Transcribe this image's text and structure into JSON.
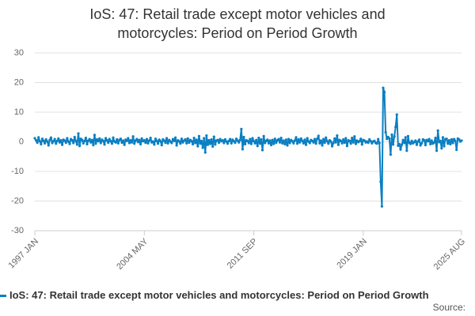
{
  "chart_data": {
    "type": "line",
    "title": "IoS: 47: Retail trade except motor vehicles and motorcycles: Period on Period Growth",
    "source": "Source:",
    "categories": [
      "1997 JAN",
      null,
      null,
      null,
      null,
      null,
      null,
      null,
      null,
      null,
      null,
      null,
      null,
      null,
      null,
      null,
      null,
      null,
      null,
      null,
      null,
      null,
      null,
      null,
      null,
      null,
      null,
      null,
      null,
      null,
      null,
      null,
      null,
      null,
      null,
      null,
      null,
      null,
      null,
      null,
      null,
      null,
      null,
      null,
      null,
      null,
      null,
      null,
      null,
      null,
      null,
      null,
      null,
      null,
      null,
      null,
      null,
      null,
      null,
      null,
      null,
      null,
      null,
      null,
      null,
      null,
      null,
      null,
      null,
      null,
      null,
      null,
      null,
      null,
      null,
      null,
      null,
      null,
      null,
      null,
      null,
      null,
      null,
      null,
      null,
      null,
      null,
      null,
      "2004 MAY",
      null,
      null,
      null,
      null,
      null,
      null,
      null,
      null,
      null,
      null,
      null,
      null,
      null,
      null,
      null,
      null,
      null,
      null,
      null,
      null,
      null,
      null,
      null,
      null,
      null,
      null,
      null,
      null,
      null,
      null,
      null,
      null,
      null,
      null,
      null,
      null,
      null,
      null,
      null,
      null,
      null,
      null,
      null,
      null,
      null,
      null,
      null,
      null,
      null,
      null,
      null,
      null,
      null,
      null,
      null,
      null,
      null,
      null,
      null,
      null,
      null,
      null,
      null,
      null,
      null,
      null,
      null,
      null,
      null,
      null,
      null,
      null,
      null,
      null,
      null,
      null,
      null,
      null,
      null,
      null,
      null,
      null,
      null,
      null,
      null,
      null,
      null,
      "2011 SEP",
      null,
      null,
      null,
      null,
      null,
      null,
      null,
      null,
      null,
      null,
      null,
      null,
      null,
      null,
      null,
      null,
      null,
      null,
      null,
      null,
      null,
      null,
      null,
      null,
      null,
      null,
      null,
      null,
      null,
      null,
      null,
      null,
      null,
      null,
      null,
      null,
      null,
      null,
      null,
      null,
      null,
      null,
      null,
      null,
      null,
      null,
      null,
      null,
      null,
      null,
      null,
      null,
      null,
      null,
      null,
      null,
      null,
      null,
      null,
      null,
      null,
      null,
      null,
      null,
      null,
      null,
      null,
      null,
      null,
      null,
      null,
      null,
      null,
      null,
      null,
      null,
      null,
      null,
      null,
      null,
      null,
      null,
      null,
      null,
      null,
      null,
      null,
      "2019 JAN",
      null,
      null,
      null,
      null,
      null,
      null,
      null,
      null,
      null,
      null,
      null,
      null,
      null,
      null,
      null,
      null,
      null,
      null,
      null,
      null,
      null,
      null,
      null,
      null,
      null,
      null,
      null,
      null,
      null,
      null,
      null,
      null,
      null,
      null,
      null,
      null,
      null,
      null,
      null,
      null,
      null,
      null,
      null,
      null,
      null,
      null,
      null,
      null,
      null,
      null,
      null,
      null,
      null,
      null,
      null,
      null,
      null,
      null,
      null,
      null,
      null,
      null,
      null,
      null,
      null,
      null,
      null,
      null,
      null,
      null,
      null,
      null,
      null,
      null,
      null,
      null,
      null,
      null,
      "2025 AUG"
    ],
    "series": [
      {
        "name": "IoS: 47: Retail trade except motor vehicles and motorcycles: Period on Period Growth",
        "color": "#0a7fc2",
        "values": [
          1.2,
          0.5,
          -0.3,
          1.5,
          0.2,
          -0.8,
          1.0,
          0.3,
          -0.5,
          0.8,
          0.1,
          -1.2,
          0.6,
          1.4,
          -0.4,
          0.2,
          0.9,
          -0.6,
          0.3,
          1.1,
          -0.2,
          0.5,
          -1.0,
          0.7,
          0.4,
          -0.3,
          1.2,
          0.1,
          -0.7,
          0.9,
          0.5,
          -0.4,
          1.6,
          0.2,
          -0.9,
          2.8,
          -1.4,
          1.0,
          0.6,
          -0.5,
          0.3,
          1.3,
          -0.8,
          0.4,
          0.9,
          -0.2,
          0.6,
          -1.1,
          2.3,
          -0.6,
          0.8,
          0.2,
          1.1,
          -0.4,
          0.7,
          0.3,
          -0.9,
          1.2,
          0.5,
          -0.3,
          0.9,
          0.2,
          -0.6,
          1.4,
          0.1,
          -0.2,
          0.8,
          -0.5,
          0.6,
          1.0,
          -0.3,
          0.4,
          -1.0,
          0.7,
          0.3,
          1.2,
          -0.4,
          0.5,
          -0.2,
          1.8,
          -0.6,
          0.4,
          0.9,
          -0.1,
          0.6,
          -0.8,
          1.1,
          0.2,
          0.5,
          -0.3,
          0.9,
          -0.5,
          0.4,
          1.3,
          -0.2,
          0.1,
          -0.9,
          1.0,
          0.3,
          -0.6,
          0.7,
          0.2,
          -1.1,
          0.8,
          0.4,
          -0.3,
          1.2,
          -0.5,
          0.6,
          0.1,
          -0.4,
          0.9,
          0.3,
          1.4,
          -1.2,
          0.5,
          0.2,
          -0.6,
          1.0,
          -0.2,
          0.4,
          0.8,
          -0.5,
          1.1,
          -0.3,
          0.6,
          0.2,
          -0.8,
          1.3,
          -0.4,
          0.7,
          -1.5,
          1.9,
          -0.6,
          0.3,
          -2.0,
          1.2,
          -3.6,
          2.1,
          -1.0,
          0.5,
          -0.7,
          0.8,
          -1.6,
          1.7,
          -0.9,
          0.4,
          0.6,
          -0.3,
          0.9,
          0.2,
          0.5,
          -0.4,
          0.8,
          0.1,
          -0.6,
          0.3,
          0.9,
          -0.5,
          0.7,
          0.2,
          -0.3,
          1.0,
          0.4,
          -0.2,
          0.6,
          4.3,
          -2.5,
          1.6,
          -0.8,
          0.5,
          0.3,
          -0.4,
          0.9,
          -0.7,
          1.2,
          0.2,
          -0.5,
          0.6,
          -1.4,
          1.3,
          -0.6,
          0.8,
          -2.8,
          1.9,
          -0.4,
          0.3,
          0.7,
          -0.5,
          0.4,
          -1.1,
          0.6,
          -0.7,
          1.0,
          -0.3,
          0.5,
          0.9,
          -0.2,
          1.3,
          -0.5,
          0.4,
          -0.8,
          0.7,
          -1.2,
          0.9,
          -0.4,
          0.6,
          0.2,
          -0.5,
          0.4,
          1.5,
          -0.6,
          0.8,
          -0.2,
          1.1,
          0.3,
          -0.5,
          0.7,
          -1.0,
          1.2,
          0.1,
          -0.4,
          0.6,
          0.3,
          -0.2,
          0.9,
          -0.6,
          1.0,
          2.0,
          -0.5,
          0.4,
          -1.2,
          0.9,
          -0.3,
          1.4,
          0.2,
          -0.6,
          0.5,
          0.1,
          -1.5,
          -0.4,
          1.1,
          -0.2,
          2.1,
          -1.0,
          0.6,
          0.3,
          -0.5,
          0.8,
          -0.3,
          1.2,
          -1.4,
          0.5,
          0.3,
          -0.6,
          1.3,
          -0.2,
          1.8,
          -0.7,
          0.4,
          -0.1,
          0.2,
          1.0,
          -0.9,
          0.6,
          0.4,
          -0.2,
          0.1,
          -0.3,
          0.8,
          0.2,
          -0.5,
          0.1,
          0.3,
          -0.4,
          -0.6,
          0.9,
          -0.4,
          -13.5,
          -21.8,
          18.2,
          16.8,
          3.2,
          1.0,
          1.6,
          1.1,
          -4.3,
          2.4,
          -0.9,
          1.8,
          5.0,
          9.2,
          -1.3,
          -0.8,
          -2.6,
          -1.0,
          0.6,
          -0.4,
          1.5,
          -3.0,
          1.9,
          -0.3,
          -0.7,
          0.3,
          -0.5,
          -0.1,
          0.4,
          -1.0,
          0.1,
          0.7,
          -1.2,
          -0.5,
          0.8,
          0.5,
          -1.1,
          0.6,
          0.2,
          0.9,
          -0.8,
          0.4,
          -0.6,
          -0.2,
          1.3,
          -3.0,
          3.8,
          -0.1,
          0.3,
          -2.2,
          1.5,
          -1.5,
          0.9,
          1.0,
          -0.6,
          0.5,
          -0.8,
          0.8,
          -0.4,
          0.9,
          0.3,
          -2.7,
          1.1,
          0.8,
          0.1,
          0.4
        ]
      }
    ],
    "ylim": [
      -30,
      30
    ],
    "yticks": [
      -30,
      -20,
      -10,
      0,
      10,
      20,
      30
    ],
    "grid": true
  }
}
